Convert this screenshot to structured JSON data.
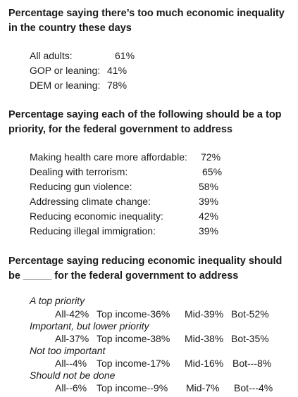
{
  "section1": {
    "heading": "Percentage saying there’s too much economic inequality in the country these days",
    "rows": [
      {
        "label": "All adults:",
        "value": "61%"
      },
      {
        "label": "GOP or leaning:",
        "value": "41%"
      },
      {
        "label": "DEM or leaning:",
        "value": "78%"
      }
    ]
  },
  "section2": {
    "heading": "Percentage saying each of the following should be a top priority, for the federal government to address",
    "rows": [
      {
        "label": "Making health care more affordable:",
        "value": "72%"
      },
      {
        "label": "Dealing with terrorism:",
        "value": "65%"
      },
      {
        "label": "Reducing gun violence:",
        "value": "58%"
      },
      {
        "label": "Addressing climate change:",
        "value": "39%"
      },
      {
        "label": "Reducing economic inequality:",
        "value": "42%"
      },
      {
        "label": "Reducing illegal immigration:",
        "value": "39%"
      }
    ]
  },
  "section3": {
    "heading": "Percentage saying reducing economic inequality should be _____ for the federal government to address",
    "options": [
      {
        "label": "A top priority",
        "all": "All-42%",
        "top": "Top income-36%",
        "mid": "Mid-39%",
        "bot": "Bot-52%"
      },
      {
        "label": "Important, but lower priority",
        "all": "All-37%",
        "top": "Top income-38%",
        "mid": "Mid-38%",
        "bot": "Bot-35%"
      },
      {
        "label": "Not too important",
        "all": "All--4%",
        "top": "Top income-17%",
        "mid": "Mid-16%",
        "bot": "Bot---8%"
      },
      {
        "label": "Should not be done",
        "all": "All--6%",
        "top": "Top income--9%",
        "mid": "Mid-7%",
        "bot": "Bot---4%"
      }
    ]
  }
}
